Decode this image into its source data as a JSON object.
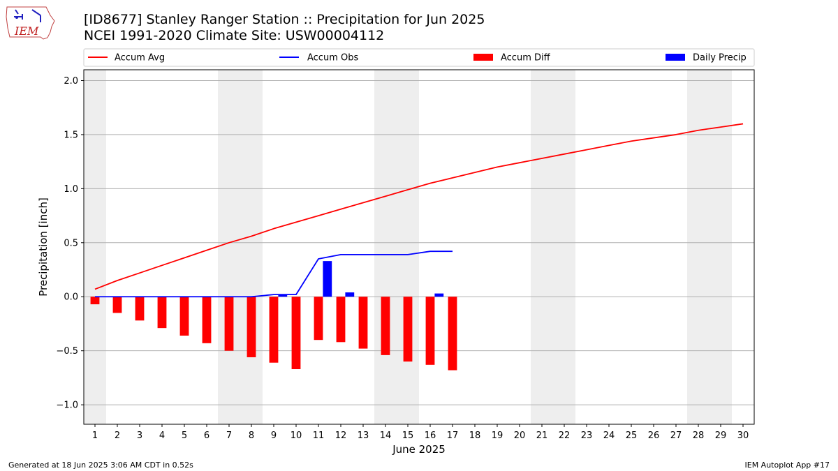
{
  "header": {
    "title_line1": "[ID8677] Stanley Ranger Station :: Precipitation for Jun 2025",
    "title_line2": "NCEI 1991-2020 Climate Site: USW00004112",
    "logo_text": "IEM"
  },
  "footer": {
    "generated": "Generated at 18 Jun 2025 3:06 AM CDT in 0.52s",
    "app": "IEM Autoplot App #17"
  },
  "chart_data": {
    "type": "bar",
    "xlabel": "June 2025",
    "ylabel": "Precipitation [inch]",
    "xlim": [
      0.5,
      30.5
    ],
    "ylim": [
      -1.18,
      2.1
    ],
    "yticks": [
      -1.0,
      -0.5,
      0.0,
      0.5,
      1.0,
      1.5,
      2.0
    ],
    "ytick_labels": [
      "−1.0",
      "−0.5",
      "0.0",
      "0.5",
      "1.0",
      "1.5",
      "2.0"
    ],
    "categories": [
      "1",
      "2",
      "3",
      "4",
      "5",
      "6",
      "7",
      "8",
      "9",
      "10",
      "11",
      "12",
      "13",
      "14",
      "15",
      "16",
      "17",
      "18",
      "19",
      "20",
      "21",
      "22",
      "23",
      "24",
      "25",
      "26",
      "27",
      "28",
      "29",
      "30"
    ],
    "weekend_spans": [
      [
        0.5,
        1.5
      ],
      [
        6.5,
        8.5
      ],
      [
        13.5,
        15.5
      ],
      [
        20.5,
        22.5
      ],
      [
        27.5,
        29.5
      ]
    ],
    "grid": "horizontal",
    "legend_placement": "top",
    "colors": {
      "avg": "#ff0000",
      "obs": "#0000ff",
      "diff": "#ff0000",
      "daily": "#0000ff",
      "weekend": "#eeeeee",
      "grid": "#b0b0b0"
    },
    "series": [
      {
        "name": "Accum Avg",
        "kind": "line",
        "color": "#ff0000",
        "x": [
          1,
          2,
          3,
          4,
          5,
          6,
          7,
          8,
          9,
          10,
          11,
          12,
          13,
          14,
          15,
          16,
          17,
          18,
          19,
          20,
          21,
          22,
          23,
          24,
          25,
          26,
          27,
          28,
          29,
          30
        ],
        "values": [
          0.07,
          0.15,
          0.22,
          0.29,
          0.36,
          0.43,
          0.5,
          0.56,
          0.63,
          0.69,
          0.75,
          0.81,
          0.87,
          0.93,
          0.99,
          1.05,
          1.1,
          1.15,
          1.2,
          1.24,
          1.28,
          1.32,
          1.36,
          1.4,
          1.44,
          1.47,
          1.5,
          1.54,
          1.57,
          1.6
        ]
      },
      {
        "name": "Accum Obs",
        "kind": "line",
        "color": "#0000ff",
        "x": [
          1,
          2,
          3,
          4,
          5,
          6,
          7,
          8,
          9,
          10,
          11,
          12,
          13,
          14,
          15,
          16,
          17
        ],
        "values": [
          0.0,
          0.0,
          0.0,
          0.0,
          0.0,
          0.0,
          0.0,
          0.0,
          0.02,
          0.02,
          0.35,
          0.39,
          0.39,
          0.39,
          0.39,
          0.42,
          0.42
        ]
      },
      {
        "name": "Accum Diff",
        "kind": "bar",
        "color": "#ff0000",
        "x": [
          1,
          2,
          3,
          4,
          5,
          6,
          7,
          8,
          9,
          10,
          11,
          12,
          13,
          14,
          15,
          16,
          17
        ],
        "values": [
          -0.07,
          -0.15,
          -0.22,
          -0.29,
          -0.36,
          -0.43,
          -0.5,
          -0.56,
          -0.61,
          -0.67,
          -0.4,
          -0.42,
          -0.48,
          -0.54,
          -0.6,
          -0.63,
          -0.68
        ]
      },
      {
        "name": "Daily Precip",
        "kind": "bar",
        "color": "#0000ff",
        "x": [
          9,
          11,
          12,
          16
        ],
        "values": [
          0.02,
          0.33,
          0.04,
          0.03
        ]
      }
    ]
  }
}
